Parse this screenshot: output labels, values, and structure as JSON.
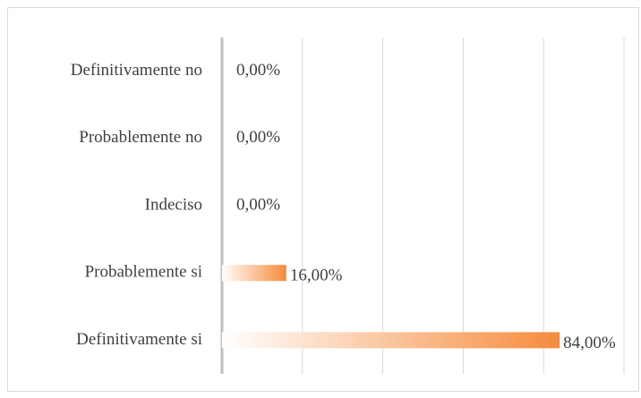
{
  "chart_data": {
    "type": "bar",
    "orientation": "horizontal",
    "categories": [
      "Definitivamente no",
      "Probablemente no",
      "Indeciso",
      "Probablemente si",
      "Definitivamente si"
    ],
    "values": [
      0,
      0,
      0,
      16,
      84
    ],
    "value_labels": [
      "0,00%",
      "0,00%",
      "0,00%",
      "16,00%",
      "84,00%"
    ],
    "color": "#f68b3c",
    "xlim": [
      0,
      100
    ],
    "xticks": [
      0,
      20,
      40,
      60,
      80,
      100
    ],
    "grid": true
  }
}
